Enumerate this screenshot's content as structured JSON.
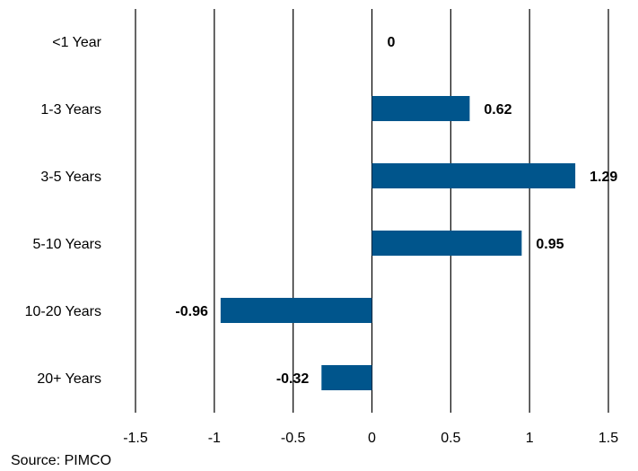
{
  "chart_data": {
    "type": "bar",
    "orientation": "horizontal",
    "categories": [
      "<1 Year",
      "1-3 Years",
      "3-5 Years",
      "5-10 Years",
      "10-20 Years",
      "20+ Years"
    ],
    "values": [
      0,
      0.62,
      1.29,
      0.95,
      -0.96,
      -0.32
    ],
    "data_labels": [
      "0",
      "0.62",
      "1.29",
      "0.95",
      "-0.96",
      "-0.32"
    ],
    "xlim": [
      -1.5,
      1.5
    ],
    "x_ticks": [
      -1.5,
      -1,
      -0.5,
      0,
      0.5,
      1,
      1.5
    ],
    "x_tick_labels": [
      "-1.5",
      "-1",
      "-0.5",
      "0",
      "0.5",
      "1",
      "1.5"
    ],
    "grid": "vertical",
    "bar_color": "#00558C",
    "title": "",
    "xlabel": "",
    "ylabel": ""
  },
  "source": "Source: PIMCO"
}
